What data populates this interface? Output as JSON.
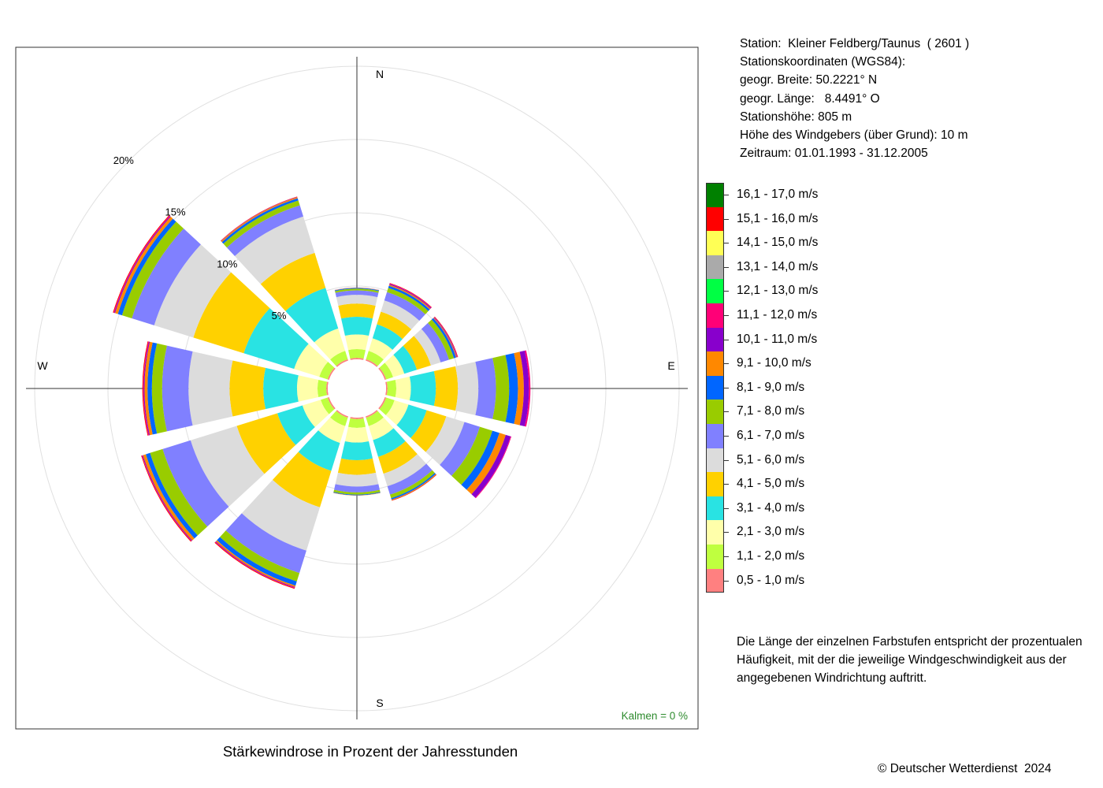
{
  "station_info": {
    "station": "Station:  Kleiner Feldberg/Taunus  ( 2601 )",
    "coords_title": "Stationskoordinaten (WGS84):",
    "lat": "geogr. Breite: 50.2221° N",
    "lon": "geogr. Länge:   8.4491° O",
    "altitude": "Stationshöhe: 805 m",
    "anemometer": "Höhe des Windgebers (über Grund): 10 m",
    "period": "Zeitraum: 01.01.1993 - 31.12.2005"
  },
  "note": "Die Länge der einzelnen Farbstufen entspricht der prozentualen Häufigkeit, mit der die jeweilige Windgeschwindigkeit aus der angegebenen Windrichtung auftritt.",
  "caption": "Stärkewindrose in Prozent der Jahresstunden",
  "copyright": "© Deutscher Wetterdienst  2024",
  "calm_label": "Kalmen  =  0 %",
  "chart_data": {
    "type": "wind-rose",
    "title": "Stärkewindrose in Prozent der Jahresstunden",
    "radial_unit": "%",
    "radial_ticks": [
      {
        "value": 5,
        "label": "5%"
      },
      {
        "value": 10,
        "label": "10%"
      },
      {
        "value": 15,
        "label": "15%"
      },
      {
        "value": 20,
        "label": "20%"
      }
    ],
    "direction_labels": [
      {
        "label": "N",
        "angle": 0
      },
      {
        "label": "E",
        "angle": 90
      },
      {
        "label": "S",
        "angle": 180
      },
      {
        "label": "W",
        "angle": 270
      }
    ],
    "calm_percent": 0,
    "categories": [
      {
        "label": "0,5 - 1,0 m/s",
        "color": "#FF8080"
      },
      {
        "label": "1,1 - 2,0 m/s",
        "color": "#BFFF3F"
      },
      {
        "label": "2,1 - 3,0 m/s",
        "color": "#FFFFAA"
      },
      {
        "label": "3,1 - 4,0 m/s",
        "color": "#29E3E3"
      },
      {
        "label": "4,1 - 5,0 m/s",
        "color": "#FFD100"
      },
      {
        "label": "5,1 - 6,0 m/s",
        "color": "#DCDCDC"
      },
      {
        "label": "6,1 - 7,0 m/s",
        "color": "#8080FF"
      },
      {
        "label": "7,1 - 8,0 m/s",
        "color": "#99CC00"
      },
      {
        "label": "8,1 - 9,0 m/s",
        "color": "#0066FF"
      },
      {
        "label": "9,1 - 10,0 m/s",
        "color": "#FF8800"
      },
      {
        "label": "10,1 - 11,0 m/s",
        "color": "#8800CC"
      },
      {
        "label": "11,1 - 12,0 m/s",
        "color": "#FF0077"
      },
      {
        "label": "12,1 - 13,0 m/s",
        "color": "#00FF44"
      },
      {
        "label": "13,1 - 14,0 m/s",
        "color": "#AAAAAA"
      },
      {
        "label": "14,1 - 15,0 m/s",
        "color": "#FFFF55"
      },
      {
        "label": "15,1 - 16,0 m/s",
        "color": "#FF0000"
      },
      {
        "label": "16,1 - 17,0 m/s",
        "color": "#008000"
      }
    ],
    "directions": [
      0,
      30,
      60,
      90,
      120,
      150,
      180,
      210,
      240,
      270,
      300,
      330
    ],
    "series": [
      {
        "direction": 0,
        "values": [
          0.1,
          0.6,
          1.0,
          1.2,
          0.9,
          0.6,
          0.3,
          0.12,
          0.05,
          0.02,
          0.01,
          0,
          0,
          0,
          0,
          0,
          0
        ]
      },
      {
        "direction": 30,
        "values": [
          0.1,
          0.6,
          0.9,
          1.0,
          0.9,
          0.8,
          0.6,
          0.3,
          0.15,
          0.08,
          0.06,
          0.03,
          0,
          0,
          0,
          0.03,
          0
        ]
      },
      {
        "direction": 60,
        "values": [
          0.1,
          0.5,
          0.8,
          0.9,
          1.0,
          0.7,
          0.6,
          0.35,
          0.15,
          0.05,
          0.04,
          0.02,
          0,
          0,
          0,
          0.03,
          0
        ]
      },
      {
        "direction": 90,
        "values": [
          0.1,
          0.6,
          1.0,
          1.7,
          1.5,
          1.4,
          1.2,
          0.9,
          0.6,
          0.4,
          0.35,
          0.1,
          0,
          0,
          0,
          0,
          0
        ]
      },
      {
        "direction": 120,
        "values": [
          0.1,
          0.6,
          1.0,
          1.3,
          1.4,
          1.3,
          1.1,
          0.9,
          0.5,
          0.45,
          0.35,
          0.05,
          0,
          0,
          0,
          0,
          0
        ]
      },
      {
        "direction": 150,
        "values": [
          0.1,
          0.6,
          1.0,
          1.2,
          1.2,
          0.9,
          0.6,
          0.25,
          0.1,
          0.05,
          0,
          0,
          0,
          0,
          0,
          0.03,
          0
        ]
      },
      {
        "direction": 180,
        "values": [
          0.1,
          0.6,
          1.0,
          1.2,
          1.0,
          0.8,
          0.4,
          0.15,
          0.05,
          0.02,
          0,
          0,
          0,
          0,
          0,
          0,
          0
        ]
      },
      {
        "direction": 210,
        "values": [
          0.1,
          0.6,
          1.2,
          2.0,
          2.6,
          3.1,
          1.6,
          0.6,
          0.3,
          0.1,
          0.05,
          0.03,
          0,
          0,
          0,
          0.05,
          0
        ]
      },
      {
        "direction": 240,
        "values": [
          0.1,
          0.5,
          1.3,
          1.8,
          2.9,
          3.3,
          2.0,
          0.9,
          0.3,
          0.2,
          0.05,
          0.03,
          0,
          0,
          0,
          0.05,
          0
        ]
      },
      {
        "direction": 270,
        "values": [
          0.1,
          0.6,
          1.4,
          2.3,
          2.3,
          2.8,
          1.8,
          0.7,
          0.3,
          0.2,
          0.06,
          0.04,
          0,
          0,
          0,
          0.05,
          0
        ]
      },
      {
        "direction": 300,
        "values": [
          0.1,
          0.6,
          1.8,
          3.6,
          3.6,
          2.8,
          1.6,
          0.7,
          0.3,
          0.2,
          0.06,
          0.04,
          0,
          0,
          0,
          0.05,
          0
        ]
      },
      {
        "direction": 330,
        "values": [
          0.1,
          0.6,
          1.6,
          2.9,
          2.5,
          2.6,
          0.8,
          0.35,
          0.15,
          0.08,
          0.02,
          0.01,
          0,
          0,
          0,
          0.02,
          0
        ]
      }
    ]
  }
}
